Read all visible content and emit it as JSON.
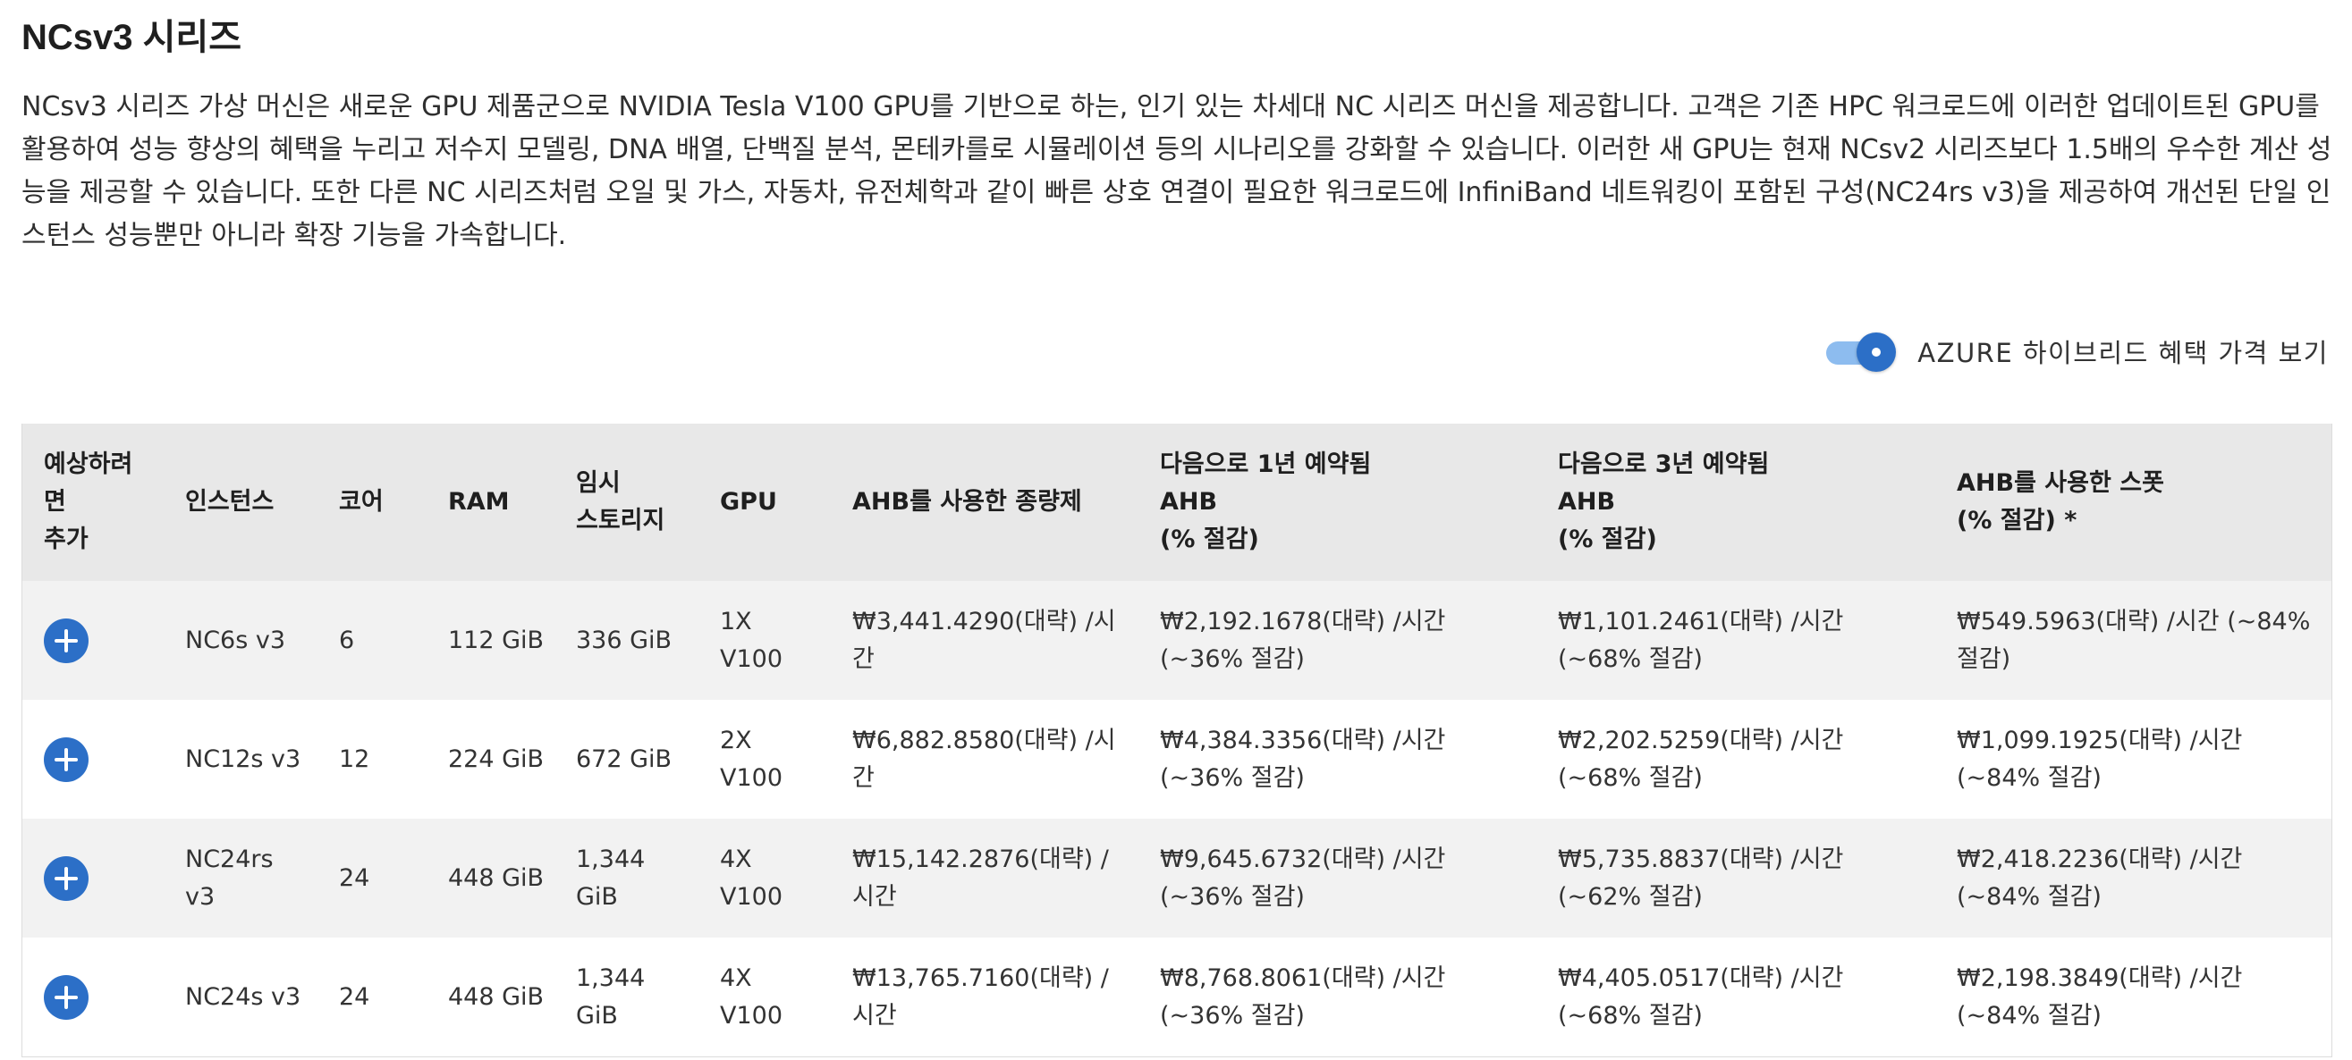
{
  "section": {
    "title": "NCsv3 시리즈",
    "description": "NCsv3 시리즈 가상 머신은 새로운 GPU 제품군으로 NVIDIA Tesla V100 GPU를 기반으로 하는, 인기 있는 차세대 NC 시리즈 머신을 제공합니다. 고객은 기존 HPC 워크로드에 이러한 업데이트된 GPU를 활용하여 성능 향상의 혜택을 누리고 저수지 모델링, DNA 배열, 단백질 분석, 몬테카를로 시뮬레이션 등의 시나리오를 강화할 수 있습니다. 이러한 새 GPU는 현재 NCsv2 시리즈보다 1.5배의 우수한 계산 성능을 제공할 수 있습니다. 또한 다른 NC 시리즈처럼 오일 및 가스, 자동차, 유전체학과 같이 빠른 상호 연결이 필요한 워크로드에 InfiniBand 네트워킹이 포함된 구성(NC24rs v3)을 제공하여 개선된 단일 인스턴스 성능뿐만 아니라 확장 기능을 가속합니다."
  },
  "toggle": {
    "label": "AZURE 하이브리드 혜택 가격 보기",
    "state": "on",
    "color": "#2c6fc7"
  },
  "table": {
    "headers": {
      "add": [
        "예상하려",
        "면",
        "추가"
      ],
      "instance": "인스턴스",
      "cores": "코어",
      "ram": "RAM",
      "storage": [
        "임시",
        "스토리지"
      ],
      "gpu": "GPU",
      "payg": "AHB를 사용한 종량제",
      "reserved1": [
        "다음으로 1년 예약됨",
        "AHB",
        "(% 절감)"
      ],
      "reserved3": [
        "다음으로 3년 예약됨",
        "AHB",
        "(% 절감)"
      ],
      "spot": [
        "AHB를 사용한 스폿",
        "(% 절감) *"
      ]
    },
    "rows": [
      {
        "instance": "NC6s v3",
        "cores": "6",
        "ram": "112 GiB",
        "storage": "336 GiB",
        "gpu": "1X V100",
        "payg": "₩3,441.4290(대략) /시간",
        "reserved1": "₩2,192.1678(대략) /시간 (~36% 절감)",
        "reserved3": "₩1,101.2461(대략) /시간 (~68% 절감)",
        "spot": "₩549.5963(대략) /시간 (~84% 절감)"
      },
      {
        "instance": "NC12s v3",
        "cores": "12",
        "ram": "224 GiB",
        "storage": "672 GiB",
        "gpu": "2X V100",
        "payg": "₩6,882.8580(대략) /시간",
        "reserved1": "₩4,384.3356(대략) /시간 (~36% 절감)",
        "reserved3": "₩2,202.5259(대략) /시간 (~68% 절감)",
        "spot": "₩1,099.1925(대략) /시간 (~84% 절감)"
      },
      {
        "instance": "NC24rs v3",
        "cores": "24",
        "ram": "448 GiB",
        "storage": "1,344 GiB",
        "gpu": "4X V100",
        "payg": "₩15,142.2876(대략) /시간",
        "reserved1": "₩9,645.6732(대략) /시간 (~36% 절감)",
        "reserved3": "₩5,735.8837(대략) /시간 (~62% 절감)",
        "spot": "₩2,418.2236(대략) /시간 (~84% 절감)"
      },
      {
        "instance": "NC24s v3",
        "cores": "24",
        "ram": "448 GiB",
        "storage": "1,344 GiB",
        "gpu": "4X V100",
        "payg": "₩13,765.7160(대략) /시간",
        "reserved1": "₩8,768.8061(대략) /시간 (~36% 절감)",
        "reserved3": "₩4,405.0517(대략) /시간 (~68% 절감)",
        "spot": "₩2,198.3849(대략) /시간 (~84% 절감)"
      }
    ]
  },
  "colors": {
    "accent": "#2c6fc7",
    "header_bg": "#e8e8e8",
    "row_alt_bg": "#f2f2f2"
  }
}
